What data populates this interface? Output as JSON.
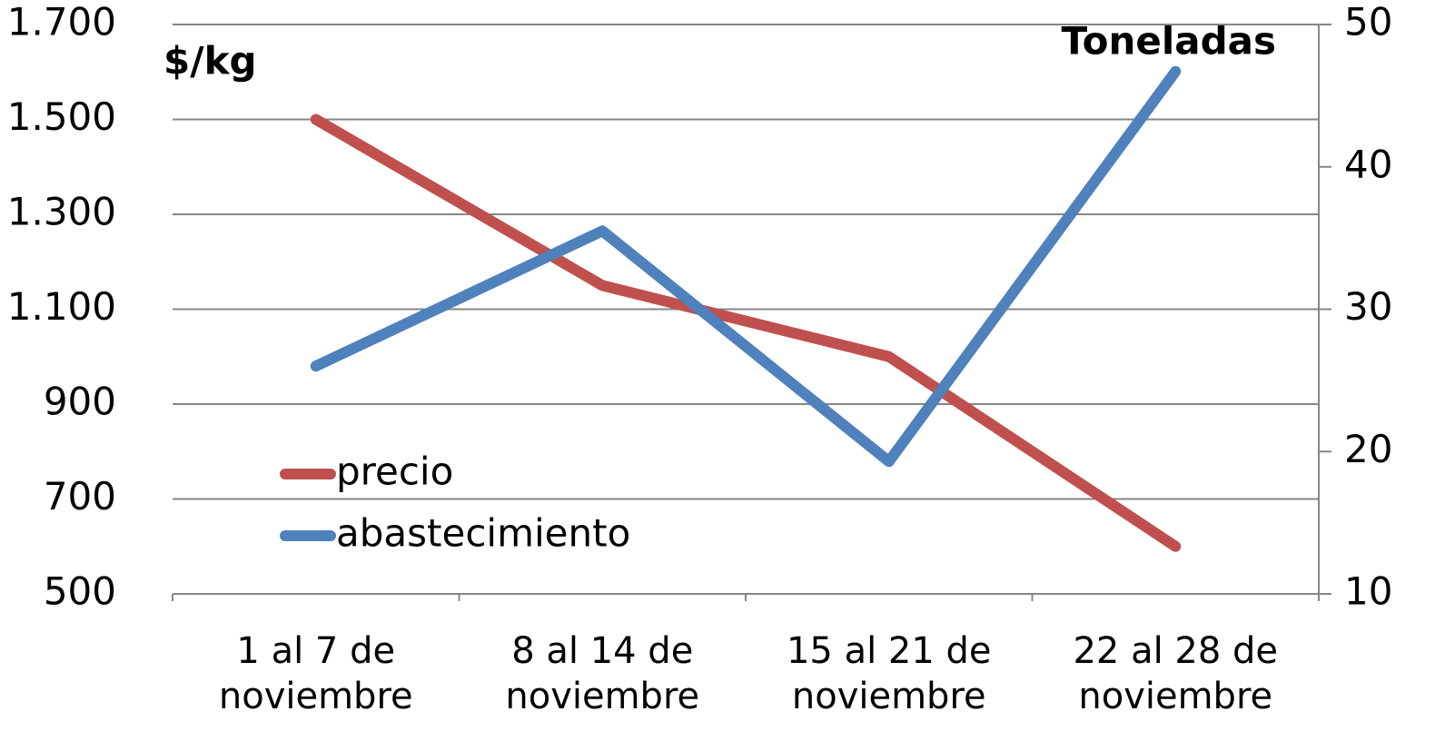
{
  "chart_data": {
    "type": "line",
    "y_label": "$/kg",
    "y2_label": "Toneladas",
    "categories": [
      "1 al 7 de noviembre",
      "8 al 14 de noviembre",
      "15 al 21 de noviembre",
      "22 al 28 de noviembre"
    ],
    "series": [
      {
        "name": "precio",
        "color": "#c0504d",
        "values": [
          1500,
          1150,
          1000,
          600
        ]
      },
      {
        "name": "abastecimiento",
        "color": "#4f81bd",
        "axis": "y2",
        "values": [
          26,
          35.5,
          19.3,
          46.7
        ]
      }
    ],
    "ylim": [
      500,
      1700
    ],
    "yticks": [
      500,
      700,
      900,
      {
        "value": 1100,
        "label": "1.100"
      },
      {
        "value": 1300,
        "label": "1.300"
      },
      {
        "value": 1500,
        "label": "1.500"
      },
      {
        "value": 1700,
        "label": "1.700"
      }
    ],
    "y2lim": [
      10,
      50
    ],
    "y2ticks": [
      10,
      20,
      30,
      40,
      50
    ],
    "grid": true,
    "legend": "lower-left"
  }
}
